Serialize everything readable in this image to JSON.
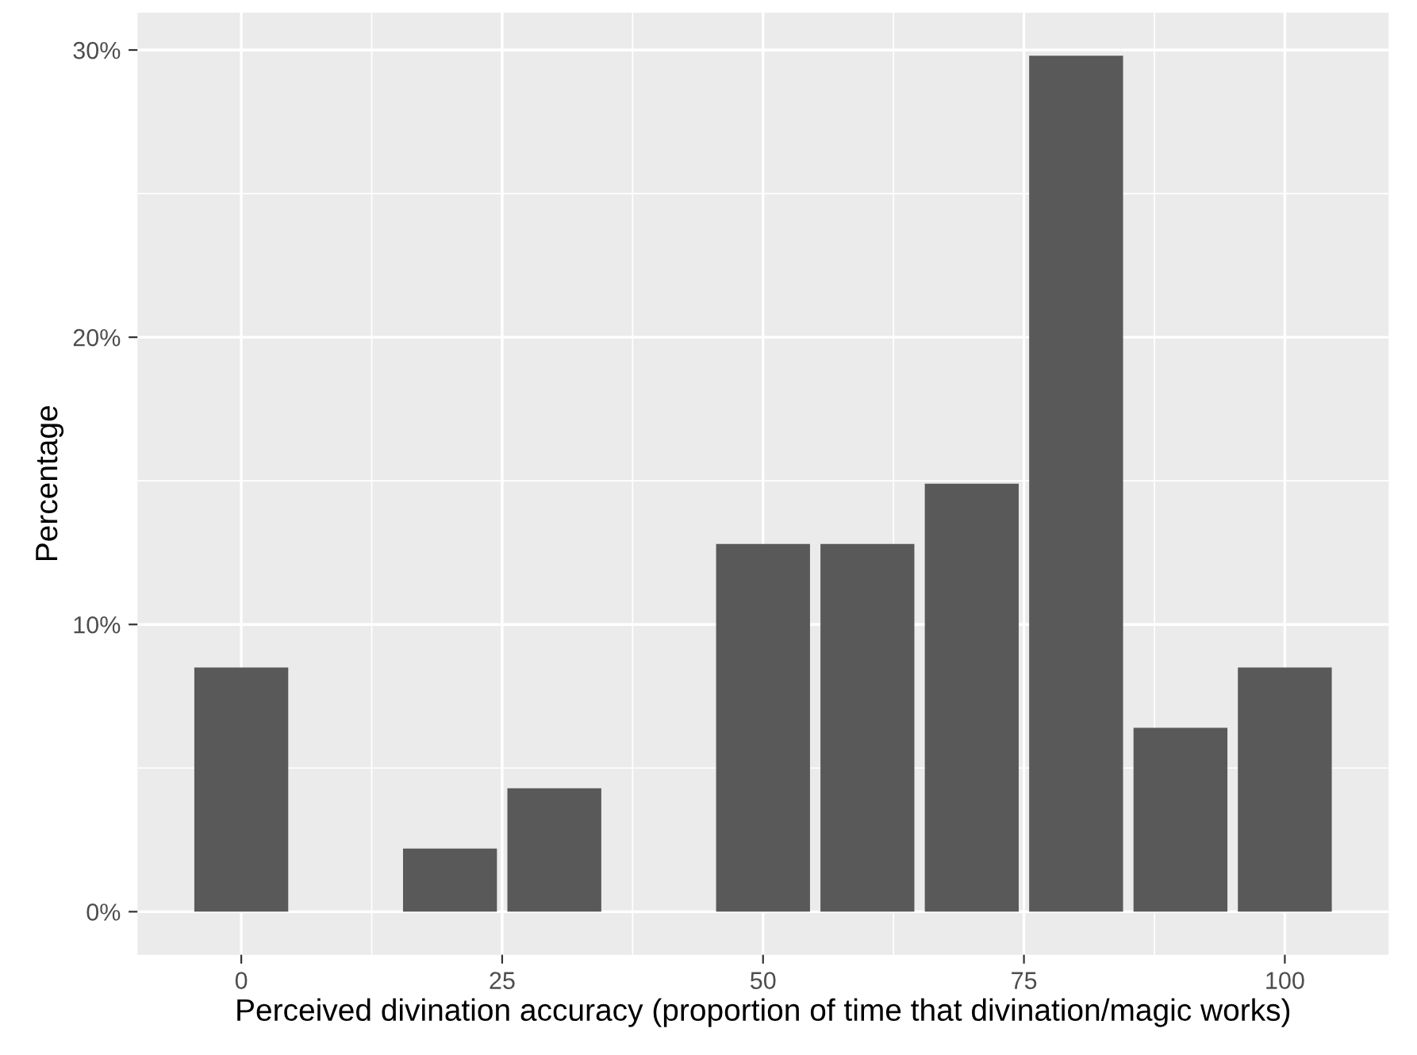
{
  "chart_data": {
    "type": "bar",
    "xlabel": "Perceived divination accuracy (proportion of time that divination/magic works)",
    "ylabel": "Percentage",
    "x": [
      0,
      20,
      30,
      50,
      60,
      70,
      80,
      90,
      100
    ],
    "values": [
      8.5,
      2.2,
      4.3,
      12.8,
      12.8,
      14.9,
      29.8,
      6.4,
      8.5
    ],
    "color": "#595959",
    "xlim": [
      -9.95,
      109.95
    ],
    "xticks": [
      0,
      25,
      50,
      75,
      100
    ],
    "ylim": [
      -1.5,
      31.3
    ],
    "yticks": [
      {
        "value": 0,
        "label": "0%"
      },
      {
        "value": 10,
        "label": "10%"
      },
      {
        "value": 20,
        "label": "20%"
      },
      {
        "value": 30,
        "label": "30%"
      }
    ],
    "grid": true
  }
}
